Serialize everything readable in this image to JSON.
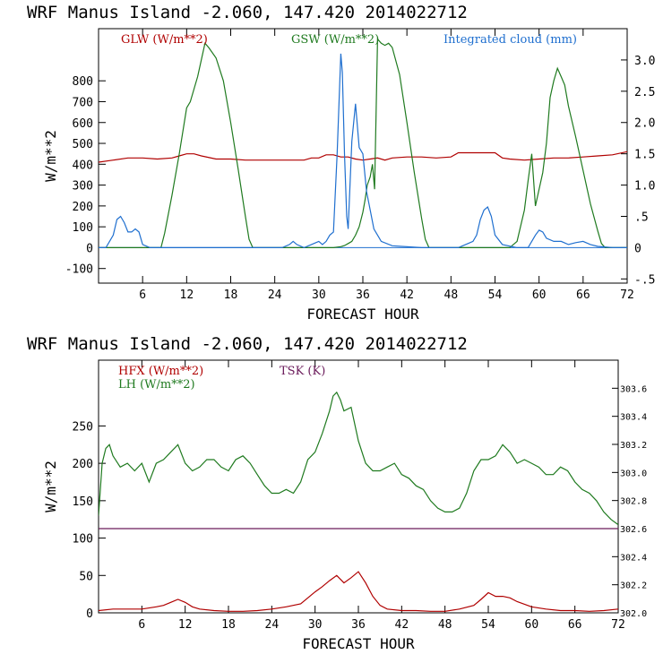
{
  "chart_data": [
    {
      "type": "line",
      "title": "WRF   Manus Island  -2.060, 147.420  2014022712",
      "xlabel": "FORECAST HOUR",
      "ylabel": "W/m**2",
      "xlim": [
        0,
        72
      ],
      "ylim": [
        -170,
        1050
      ],
      "y2lim": [
        -0.567,
        3.5
      ],
      "xticks": [
        6,
        12,
        18,
        24,
        30,
        36,
        42,
        48,
        54,
        60,
        66,
        72
      ],
      "xtick_labels": [
        "6",
        "12",
        "18",
        "24",
        "30",
        "36",
        "42",
        "48",
        "54",
        "60",
        "66",
        "72"
      ],
      "yticks": [
        -100,
        0,
        100,
        200,
        300,
        400,
        500,
        600,
        700,
        800
      ],
      "ytick_labels": [
        "-100",
        "0",
        "100",
        "200",
        "300",
        "400",
        "500",
        "600",
        "700",
        "800"
      ],
      "y2ticks": [
        -0.5,
        0,
        0.5,
        1.0,
        1.5,
        2.0,
        2.5,
        3.0
      ],
      "y2tick_labels": [
        "-.5",
        "0",
        ".5",
        "1.0",
        "1.5",
        "2.0",
        "2.5",
        "3.0"
      ],
      "grid": false,
      "legend_position": "top",
      "series": [
        {
          "name": "GLW (W/m**2)",
          "axis": "left",
          "color": "#b00000",
          "x": [
            0,
            2,
            4,
            6,
            8,
            10,
            11,
            12,
            13,
            14,
            16,
            18,
            20,
            22,
            24,
            26,
            28,
            29,
            30,
            31,
            32,
            33,
            34,
            35,
            36,
            37,
            38,
            39,
            40,
            42,
            44,
            46,
            48,
            49,
            50,
            52,
            54,
            55,
            56,
            58,
            60,
            62,
            64,
            66,
            68,
            70,
            72
          ],
          "y": [
            410,
            420,
            430,
            430,
            425,
            430,
            440,
            450,
            450,
            440,
            425,
            425,
            420,
            420,
            420,
            420,
            420,
            430,
            430,
            445,
            445,
            435,
            435,
            425,
            420,
            425,
            430,
            420,
            430,
            435,
            435,
            430,
            435,
            455,
            455,
            455,
            455,
            430,
            425,
            420,
            425,
            430,
            430,
            435,
            440,
            445,
            460
          ]
        },
        {
          "name": "GSW (W/m**2)",
          "axis": "left",
          "color": "#1f7a1f",
          "x": [
            0,
            8.5,
            9,
            10,
            11,
            12,
            12.5,
            13,
            13.5,
            14,
            14.5,
            15,
            16,
            17,
            18,
            19,
            20,
            20.5,
            21,
            30,
            32,
            33,
            33.5,
            34,
            34.5,
            35,
            35.5,
            36,
            36.3,
            36.6,
            37,
            37.3,
            37.6,
            38,
            38.5,
            39,
            39.5,
            40,
            41,
            42,
            43,
            44,
            44.5,
            45,
            56,
            57,
            58,
            58.5,
            59,
            59.5,
            60,
            60.5,
            61,
            61.5,
            62,
            62.5,
            63,
            63.5,
            64,
            65,
            66,
            67,
            68,
            68.5,
            69,
            72
          ],
          "y": [
            0,
            0,
            70,
            250,
            450,
            670,
            700,
            760,
            820,
            900,
            980,
            960,
            910,
            800,
            600,
            380,
            150,
            40,
            0,
            0,
            0,
            5,
            10,
            20,
            30,
            60,
            100,
            170,
            230,
            300,
            340,
            400,
            280,
            1000,
            980,
            970,
            980,
            960,
            830,
            600,
            360,
            140,
            40,
            0,
            0,
            30,
            180,
            320,
            450,
            200,
            280,
            360,
            500,
            720,
            800,
            860,
            820,
            780,
            680,
            530,
            370,
            210,
            80,
            20,
            0,
            0
          ]
        },
        {
          "name": "Integrated cloud (mm)",
          "axis": "right",
          "color": "#1f6fcf",
          "x": [
            0,
            1,
            2,
            2.5,
            3,
            3.5,
            4,
            4.5,
            5,
            5.5,
            6,
            7,
            10,
            20,
            25,
            26,
            26.5,
            27,
            28,
            29,
            30,
            30.5,
            31,
            31.5,
            32,
            32.5,
            33,
            33.2,
            33.5,
            33.8,
            34,
            34.5,
            35,
            35.5,
            36,
            36.5,
            37,
            37.5,
            38,
            38.5,
            40,
            44,
            49,
            50,
            51,
            51.5,
            52,
            52.5,
            53,
            53.5,
            54,
            55,
            57,
            58.5,
            59,
            59.5,
            60,
            60.5,
            61,
            62,
            63,
            64,
            65,
            66,
            67,
            68,
            70,
            72
          ],
          "y": [
            0,
            0,
            0.2,
            0.45,
            0.5,
            0.4,
            0.25,
            0.25,
            0.3,
            0.25,
            0.05,
            0,
            0,
            0,
            0,
            0.05,
            0.1,
            0.05,
            0,
            0.05,
            0.1,
            0.05,
            0.1,
            0.2,
            0.25,
            1.5,
            3.1,
            2.8,
            1.5,
            0.5,
            0.3,
            1.7,
            2.3,
            1.6,
            1.5,
            0.9,
            0.6,
            0.3,
            0.2,
            0.1,
            0.03,
            0,
            0,
            0.05,
            0.1,
            0.2,
            0.45,
            0.6,
            0.65,
            0.5,
            0.2,
            0.05,
            0,
            0,
            0.1,
            0.2,
            0.28,
            0.25,
            0.15,
            0.1,
            0.1,
            0.05,
            0.08,
            0.1,
            0.05,
            0.02,
            0,
            0
          ]
        }
      ]
    },
    {
      "type": "line",
      "title": "WRF   Manus Island  -2.060, 147.420  2014022712",
      "xlabel": "FORECAST HOUR",
      "ylabel": "W/m**2",
      "xlim": [
        0,
        72
      ],
      "ylim": [
        0,
        338
      ],
      "y2lim": [
        302.0,
        303.8
      ],
      "xticks": [
        6,
        12,
        18,
        24,
        30,
        36,
        42,
        48,
        54,
        60,
        66,
        72
      ],
      "xtick_labels": [
        "6",
        "12",
        "18",
        "24",
        "30",
        "36",
        "42",
        "48",
        "54",
        "60",
        "66",
        "72"
      ],
      "yticks": [
        0,
        50,
        100,
        150,
        200,
        250
      ],
      "ytick_labels": [
        "0",
        "50",
        "100",
        "150",
        "200",
        "250"
      ],
      "y2ticks": [
        302.0,
        302.2,
        302.4,
        302.6,
        302.8,
        303.0,
        303.2,
        303.4,
        303.6
      ],
      "y2tick_labels": [
        "302.0",
        "302.2",
        "302.4",
        "302.6",
        "302.8",
        "303.0",
        "303.2",
        "303.4",
        "303.6"
      ],
      "grid": false,
      "legend_position": "top-left",
      "series": [
        {
          "name": "HFX (W/m**2)",
          "axis": "left",
          "color": "#b00000",
          "x": [
            0,
            2,
            4,
            6,
            8,
            9,
            10,
            11,
            12,
            13,
            14,
            16,
            18,
            20,
            22,
            24,
            26,
            28,
            29,
            30,
            31,
            32,
            33,
            34,
            35,
            36,
            37,
            38,
            39,
            40,
            42,
            44,
            46,
            48,
            50,
            52,
            53,
            54,
            55,
            56,
            57,
            58,
            60,
            62,
            64,
            66,
            68,
            70,
            72
          ],
          "y": [
            3,
            5,
            5,
            5,
            8,
            10,
            14,
            18,
            14,
            8,
            5,
            3,
            2,
            2,
            3,
            5,
            8,
            12,
            20,
            28,
            35,
            43,
            50,
            40,
            47,
            55,
            40,
            22,
            10,
            5,
            3,
            3,
            2,
            2,
            5,
            10,
            18,
            27,
            22,
            22,
            20,
            15,
            8,
            5,
            3,
            3,
            2,
            3,
            5
          ]
        },
        {
          "name": "LH  (W/m**2)",
          "axis": "left",
          "color": "#1f7a1f",
          "x": [
            0,
            0.5,
            1,
            1.5,
            2,
            3,
            4,
            5,
            6,
            7,
            8,
            9,
            10,
            11,
            12,
            13,
            14,
            15,
            16,
            17,
            18,
            19,
            20,
            21,
            22,
            23,
            24,
            25,
            26,
            27,
            28,
            29,
            30,
            31,
            32,
            32.5,
            33,
            33.5,
            34,
            35,
            36,
            37,
            38,
            39,
            40,
            41,
            42,
            43,
            44,
            45,
            46,
            47,
            48,
            49,
            50,
            51,
            52,
            53,
            54,
            55,
            56,
            57,
            58,
            59,
            60,
            61,
            62,
            63,
            64,
            65,
            66,
            67,
            68,
            69,
            70,
            71,
            72
          ],
          "y": [
            130,
            200,
            220,
            225,
            210,
            195,
            200,
            190,
            200,
            175,
            200,
            205,
            215,
            225,
            200,
            190,
            195,
            205,
            205,
            195,
            190,
            205,
            210,
            200,
            185,
            170,
            160,
            160,
            165,
            160,
            175,
            205,
            215,
            240,
            270,
            290,
            295,
            285,
            270,
            275,
            230,
            200,
            190,
            190,
            195,
            200,
            185,
            180,
            170,
            165,
            150,
            140,
            135,
            135,
            140,
            160,
            190,
            205,
            205,
            210,
            225,
            215,
            200,
            205,
            200,
            195,
            185,
            185,
            195,
            190,
            175,
            165,
            160,
            150,
            135,
            125,
            118
          ]
        },
        {
          "name": "TSK (K)",
          "axis": "right",
          "color": "#6a1a5a",
          "x": [
            0,
            72
          ],
          "y": [
            302.6,
            302.6
          ]
        }
      ]
    }
  ]
}
